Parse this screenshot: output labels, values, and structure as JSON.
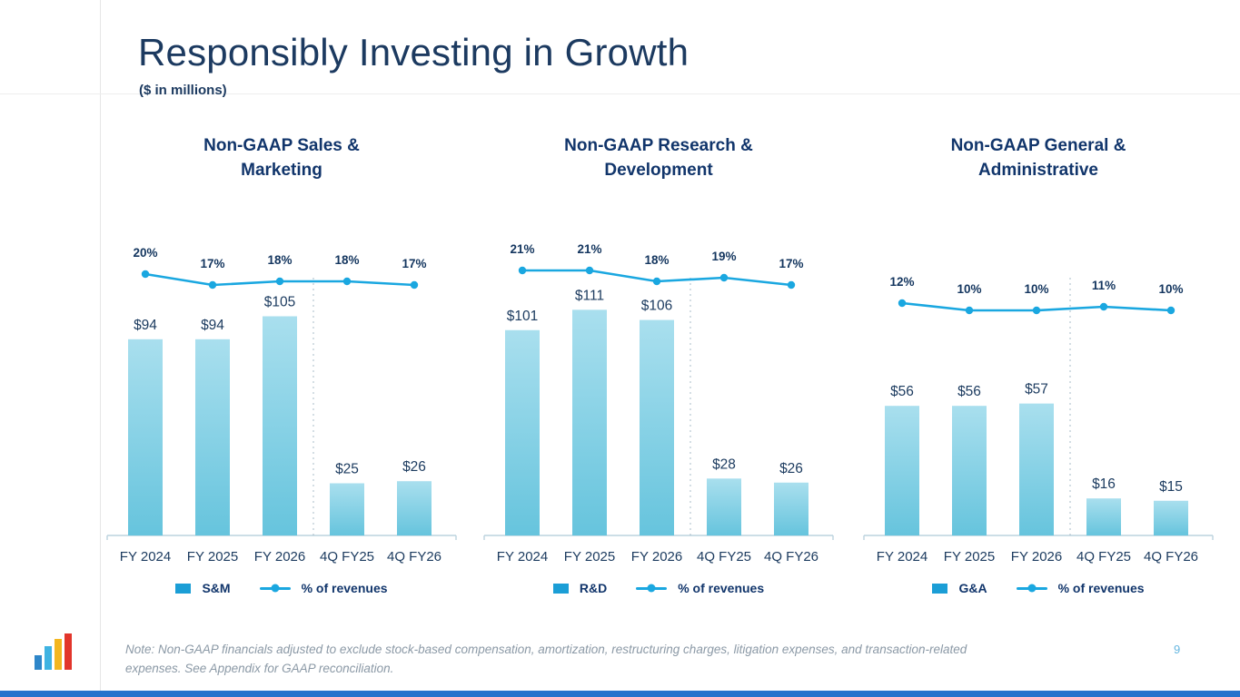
{
  "slide": {
    "title": "Responsibly Investing in Growth",
    "subtitle": "($ in millions)",
    "note": "Note: Non-GAAP financials adjusted to exclude stock-based compensation, amortization, restructuring charges, litigation expenses, and transaction-related expenses. See Appendix for GAAP reconciliation.",
    "page_number": "9"
  },
  "colors": {
    "navy": "#16355f",
    "title": "#1c3a60",
    "bar_top": "#a9dfee",
    "bar_bottom": "#66c4dd",
    "bar_legend": "#1b9ed6",
    "line": "#1aa7e0",
    "axis": "#bcd3de",
    "divider": "#a8bcc8",
    "note": "#8b99a6",
    "page_number": "#66b7e0",
    "bottom_bar": "#2373cc",
    "logo_bars": [
      "#2e86c9",
      "#3fb3e2",
      "#f3b61f",
      "#e2352b"
    ]
  },
  "chart_data": [
    {
      "type": "bar",
      "title": "Non-GAAP Sales & Marketing",
      "categories": [
        "FY 2024",
        "FY 2025",
        "FY 2026",
        "4Q FY25",
        "4Q FY26"
      ],
      "series": [
        {
          "name": "S&M",
          "type": "bar",
          "values": [
            94,
            94,
            105,
            25,
            26
          ],
          "labels": [
            "$94",
            "$94",
            "$105",
            "$25",
            "$26"
          ]
        },
        {
          "name": "% of revenues",
          "type": "line",
          "unit": "%",
          "values": [
            20,
            17,
            18,
            18,
            17
          ],
          "labels": [
            "20%",
            "17%",
            "18%",
            "18%",
            "17%"
          ]
        }
      ],
      "legend_position": "bottom",
      "grid": false,
      "bar_scale": 2.3
    },
    {
      "type": "bar",
      "title": "Non-GAAP Research & Development",
      "categories": [
        "FY 2024",
        "FY 2025",
        "FY 2026",
        "4Q FY25",
        "4Q FY26"
      ],
      "series": [
        {
          "name": "R&D",
          "type": "bar",
          "values": [
            101,
            111,
            106,
            28,
            26
          ],
          "labels": [
            "$101",
            "$111",
            "$106",
            "$28",
            "$26"
          ]
        },
        {
          "name": "% of revenues",
          "type": "line",
          "unit": "%",
          "values": [
            21,
            21,
            18,
            19,
            17
          ],
          "labels": [
            "21%",
            "21%",
            "18%",
            "19%",
            "17%"
          ]
        }
      ],
      "legend_position": "bottom",
      "grid": false,
      "bar_scale": 2.24
    },
    {
      "type": "bar",
      "title": "Non-GAAP General & Administrative",
      "categories": [
        "FY 2024",
        "FY 2025",
        "FY 2026",
        "4Q FY25",
        "4Q FY26"
      ],
      "series": [
        {
          "name": "G&A",
          "type": "bar",
          "values": [
            56,
            56,
            57,
            16,
            15
          ],
          "labels": [
            "$56",
            "$56",
            "$57",
            "$16",
            "$15"
          ]
        },
        {
          "name": "% of revenues",
          "type": "line",
          "unit": "%",
          "values": [
            12,
            10,
            10,
            11,
            10
          ],
          "labels": [
            "12%",
            "10%",
            "10%",
            "11%",
            "10%"
          ]
        }
      ],
      "legend_position": "bottom",
      "grid": false,
      "bar_scale": 2.55
    }
  ]
}
